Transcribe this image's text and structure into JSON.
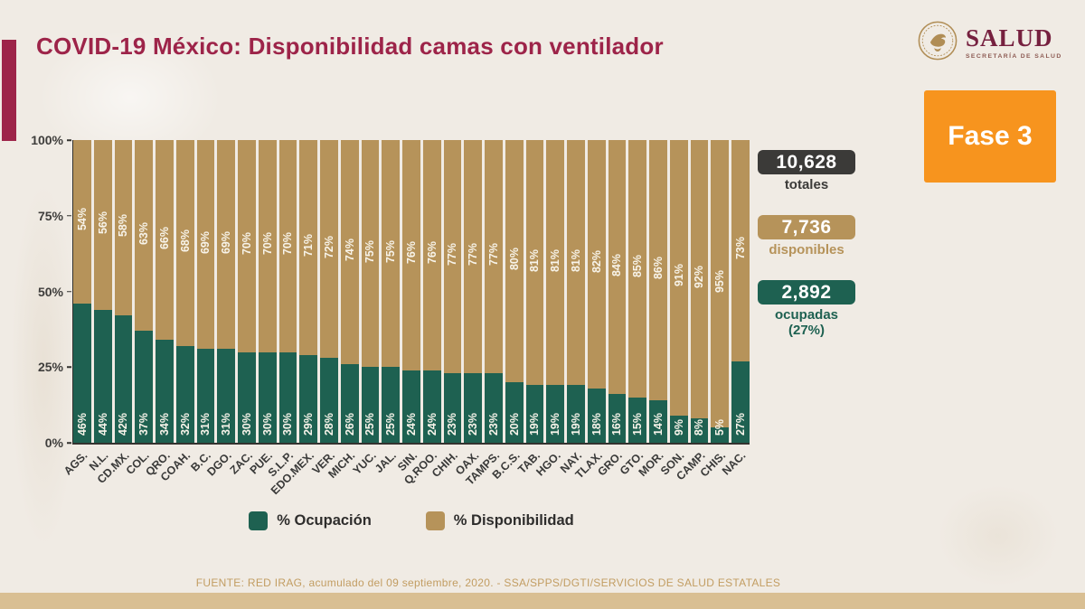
{
  "page": {
    "title": "COVID-19 México: Disponibilidad camas con ventilador"
  },
  "logo": {
    "wordmark": "SALUD",
    "subtitle": "SECRETARÍA DE SALUD",
    "emblem": "eagle-seal-icon"
  },
  "phase_badge": {
    "label": "Fase 3",
    "color": "#f7941e"
  },
  "stats": [
    {
      "id": "totales",
      "value": "10,628",
      "label": "totales",
      "box_color": "#3b3a38",
      "label_color": "#3b3a38"
    },
    {
      "id": "disponibles",
      "value": "7,736",
      "label": "disponibles",
      "box_color": "#b6935a",
      "label_color": "#b6935a"
    },
    {
      "id": "ocupadas",
      "value": "2,892",
      "label": "ocupadas",
      "sublabel": "(27%)",
      "box_color": "#1e6151",
      "label_color": "#1e6151"
    }
  ],
  "chart_data": {
    "type": "bar",
    "stacked": true,
    "orientation": "vertical",
    "categories": [
      "AGS.",
      "N.L.",
      "CD.MX.",
      "COL.",
      "QRO.",
      "COAH.",
      "B.C.",
      "DGO.",
      "ZAC.",
      "PUE.",
      "S.L.P.",
      "EDO.MEX.",
      "VER.",
      "MICH.",
      "YUC.",
      "JAL.",
      "SIN.",
      "Q.ROO.",
      "CHIH.",
      "OAX.",
      "TAMPS.",
      "B.C.S.",
      "TAB.",
      "HGO.",
      "NAY.",
      "TLAX.",
      "GRO.",
      "GTO.",
      "MOR.",
      "SON.",
      "CAMP.",
      "CHIS.",
      "NAC."
    ],
    "series": [
      {
        "name": "% Ocupación",
        "color": "#1e6151",
        "values": [
          46,
          44,
          42,
          37,
          34,
          32,
          31,
          31,
          30,
          30,
          30,
          29,
          28,
          26,
          25,
          25,
          24,
          24,
          23,
          23,
          23,
          20,
          19,
          19,
          19,
          18,
          16,
          15,
          14,
          9,
          8,
          5,
          27
        ]
      },
      {
        "name": "% Disponibilidad",
        "color": "#b6935a",
        "values": [
          54,
          56,
          58,
          63,
          66,
          68,
          69,
          69,
          70,
          70,
          70,
          71,
          72,
          74,
          75,
          75,
          76,
          76,
          77,
          77,
          77,
          80,
          81,
          81,
          81,
          82,
          84,
          85,
          86,
          91,
          92,
          95,
          73
        ]
      }
    ],
    "ylim": [
      0,
      100
    ],
    "y_ticks": [
      100,
      75,
      50,
      25,
      0
    ],
    "y_tick_suffix": "%",
    "value_label_suffix": "%",
    "x_tick_rotation": 45,
    "legend_position": "bottom",
    "grid": false
  },
  "footer": {
    "source": "FUENTE: RED IRAG, acumulado del 09 septiembre, 2020. - SSA/SPPS/DGTI/SERVICIOS DE SALUD ESTATALES"
  }
}
